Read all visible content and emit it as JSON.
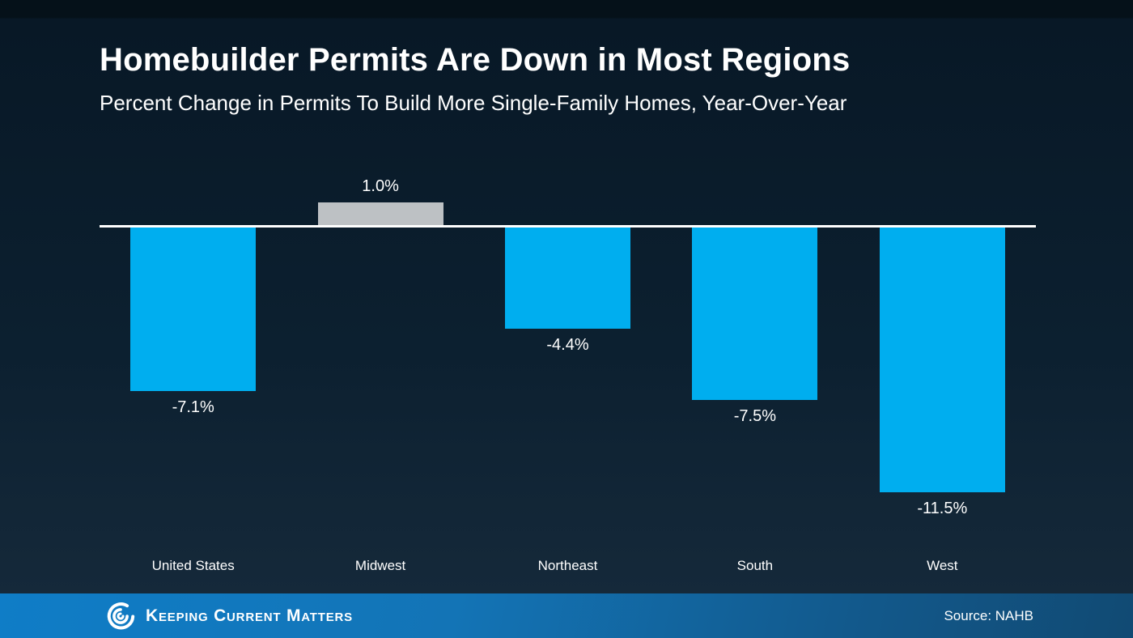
{
  "slide": {
    "title": "Homebuilder Permits Are Down in Most Regions",
    "subtitle": "Percent Change in Permits To Build More Single-Family Homes, Year-Over-Year"
  },
  "chart_data": {
    "type": "bar",
    "title": "Homebuilder Permits Are Down in Most Regions",
    "subtitle": "Percent Change in Permits To Build More Single-Family Homes, Year-Over-Year",
    "categories": [
      "United States",
      "Midwest",
      "Northeast",
      "South",
      "West"
    ],
    "values": [
      -7.1,
      1.0,
      -4.4,
      -7.5,
      -11.5
    ],
    "value_labels": [
      "-7.1%",
      "1.0%",
      "-4.4%",
      "-7.5%",
      "-11.5%"
    ],
    "bar_colors": [
      "#00AEEF",
      "#BDC1C4",
      "#00AEEF",
      "#00AEEF",
      "#00AEEF"
    ],
    "xlabel": "",
    "ylabel": "",
    "ylim": [
      -12.5,
      2
    ],
    "grid": false,
    "legend": false,
    "baseline": 0,
    "baseline_color": "#FFFFFF"
  },
  "footer": {
    "brand": "Keeping Current Matters",
    "logo_icon": "kcm-swirl-logo",
    "source": "Source: NAHB"
  },
  "colors": {
    "background_top": "#051119",
    "background_bottom": "#15293A",
    "bar_blue": "#00AEEF",
    "bar_gray": "#BDC1C4",
    "footer_left": "#0F7DC7",
    "footer_right": "#114A73",
    "text": "#FFFFFF"
  }
}
